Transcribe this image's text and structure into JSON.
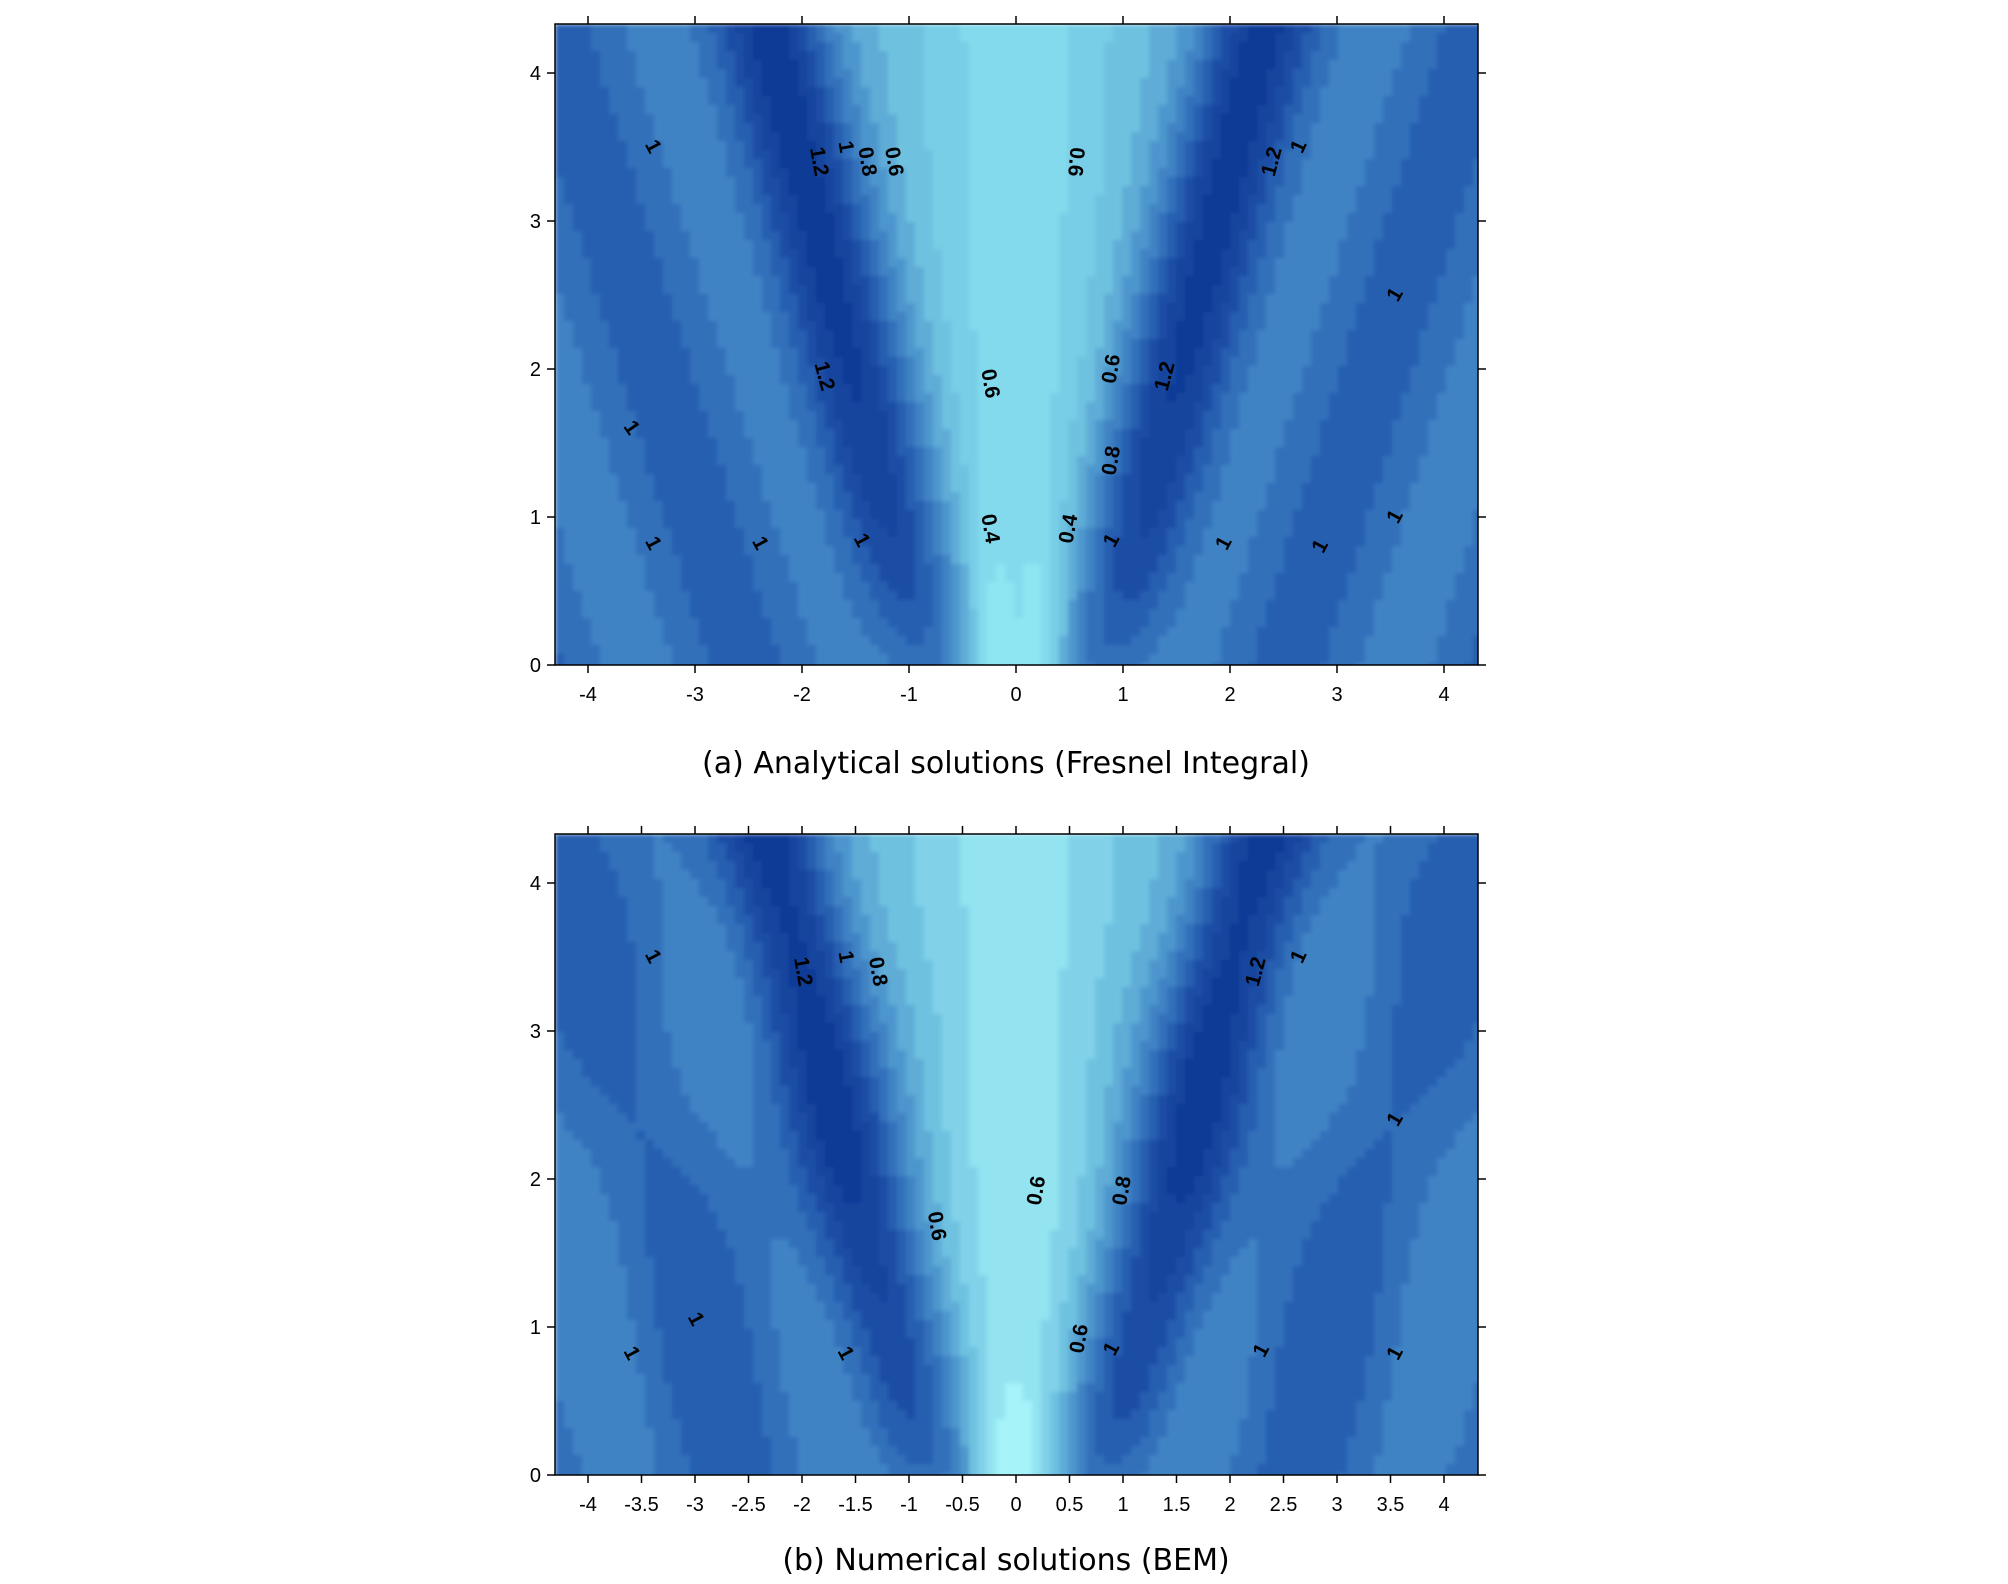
{
  "chart_data": [
    {
      "type": "contour",
      "caption": "(a) Analytical solutions (Fresnel Integral)",
      "xlim": [
        -4.3,
        4.3
      ],
      "ylim": [
        0,
        4.3
      ],
      "x_ticks": [
        "-4",
        "-3",
        "-2",
        "-1",
        "0",
        "1",
        "2",
        "3",
        "4"
      ],
      "y_ticks": [
        "0",
        "1",
        "2",
        "3",
        "4"
      ],
      "color_low": "#8de6f2",
      "color_high": "#0b3a96",
      "contour_labels": [
        {
          "text": "1",
          "x": -3.4,
          "y": 3.5,
          "angle": 62
        },
        {
          "text": "1.2",
          "x": -1.85,
          "y": 3.4,
          "angle": 80
        },
        {
          "text": "1",
          "x": -1.6,
          "y": 3.5,
          "angle": 80
        },
        {
          "text": "0.8",
          "x": -1.4,
          "y": 3.4,
          "angle": 80
        },
        {
          "text": "0.6",
          "x": -1.15,
          "y": 3.4,
          "angle": 80
        },
        {
          "text": "0.6",
          "x": 0.55,
          "y": 3.4,
          "angle": 95
        },
        {
          "text": "1.2",
          "x": 2.4,
          "y": 3.4,
          "angle": -75
        },
        {
          "text": "1",
          "x": 2.65,
          "y": 3.5,
          "angle": -65
        },
        {
          "text": "1",
          "x": 3.55,
          "y": 2.5,
          "angle": -60
        },
        {
          "text": "1.2",
          "x": -1.8,
          "y": 1.95,
          "angle": 75
        },
        {
          "text": "0.6",
          "x": -0.25,
          "y": 1.9,
          "angle": 80
        },
        {
          "text": "0.6",
          "x": 0.9,
          "y": 2.0,
          "angle": -80
        },
        {
          "text": "1.2",
          "x": 1.4,
          "y": 1.95,
          "angle": -75
        },
        {
          "text": "1",
          "x": -3.6,
          "y": 1.6,
          "angle": 55
        },
        {
          "text": "0.8",
          "x": 0.9,
          "y": 1.38,
          "angle": -80
        },
        {
          "text": "1",
          "x": -3.4,
          "y": 0.82,
          "angle": 62
        },
        {
          "text": "1",
          "x": -2.4,
          "y": 0.82,
          "angle": 62
        },
        {
          "text": "1",
          "x": -1.45,
          "y": 0.84,
          "angle": 62
        },
        {
          "text": "0.4",
          "x": -0.25,
          "y": 0.92,
          "angle": 80
        },
        {
          "text": "0.4",
          "x": 0.5,
          "y": 0.92,
          "angle": -80
        },
        {
          "text": "1",
          "x": 0.9,
          "y": 0.84,
          "angle": -62
        },
        {
          "text": "1",
          "x": 1.95,
          "y": 0.82,
          "angle": -62
        },
        {
          "text": "1",
          "x": 2.85,
          "y": 0.8,
          "angle": -62
        },
        {
          "text": "1",
          "x": 3.55,
          "y": 1.0,
          "angle": -62
        }
      ]
    },
    {
      "type": "contour",
      "caption": "(b) Numerical solutions (BEM)",
      "xlim": [
        -4.3,
        4.3
      ],
      "ylim": [
        0,
        4.3
      ],
      "x_ticks": [
        "-4",
        "-3.5",
        "-3",
        "-2.5",
        "-2",
        "-1.5",
        "-1",
        "-0.5",
        "0",
        "0.5",
        "1",
        "1.5",
        "2",
        "2.5",
        "3",
        "3.5",
        "4"
      ],
      "y_ticks": [
        "0",
        "1",
        "2",
        "3",
        "4"
      ],
      "color_low": "#a6f3fa",
      "color_high": "#0b3a96",
      "contour_labels": [
        {
          "text": "1",
          "x": -3.4,
          "y": 3.5,
          "angle": 62
        },
        {
          "text": "1.2",
          "x": -2.0,
          "y": 3.4,
          "angle": 80
        },
        {
          "text": "1",
          "x": -1.6,
          "y": 3.5,
          "angle": 80
        },
        {
          "text": "0.8",
          "x": -1.3,
          "y": 3.4,
          "angle": 80
        },
        {
          "text": "1.2",
          "x": 2.25,
          "y": 3.4,
          "angle": -75
        },
        {
          "text": "1",
          "x": 2.65,
          "y": 3.5,
          "angle": -65
        },
        {
          "text": "1",
          "x": 3.55,
          "y": 2.4,
          "angle": -60
        },
        {
          "text": "0.6",
          "x": -0.75,
          "y": 1.68,
          "angle": 80
        },
        {
          "text": "0.6",
          "x": 0.2,
          "y": 1.92,
          "angle": -80
        },
        {
          "text": "0.8",
          "x": 1.0,
          "y": 1.92,
          "angle": -80
        },
        {
          "text": "1",
          "x": -3.0,
          "y": 1.05,
          "angle": 62
        },
        {
          "text": "1",
          "x": -3.6,
          "y": 0.82,
          "angle": 62
        },
        {
          "text": "1",
          "x": -1.6,
          "y": 0.82,
          "angle": 62
        },
        {
          "text": "0.6",
          "x": 0.6,
          "y": 0.92,
          "angle": -80
        },
        {
          "text": "1",
          "x": 0.9,
          "y": 0.85,
          "angle": -62
        },
        {
          "text": "1",
          "x": 2.3,
          "y": 0.84,
          "angle": -62
        },
        {
          "text": "1",
          "x": 3.55,
          "y": 0.82,
          "angle": -62
        }
      ]
    }
  ]
}
